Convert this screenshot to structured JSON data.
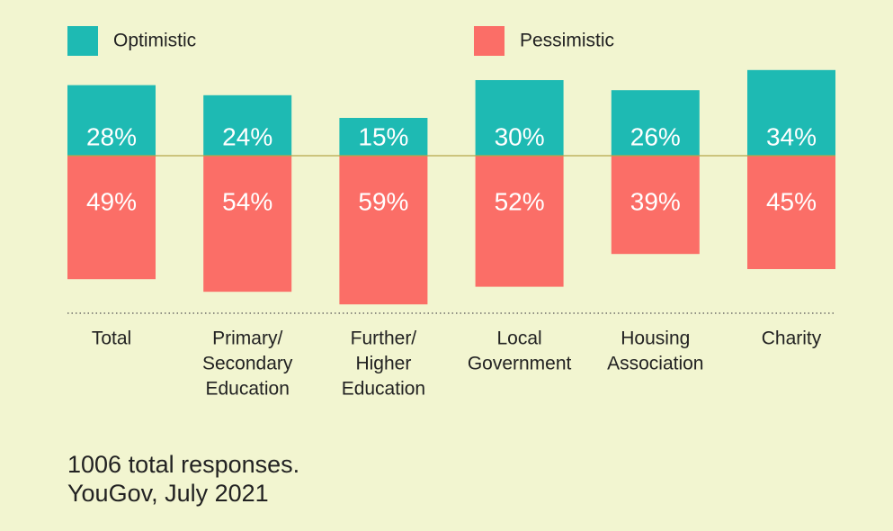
{
  "chart_data": {
    "type": "diverging_bar",
    "categories": [
      [
        "Total"
      ],
      [
        "Primary/",
        "Secondary",
        "Education"
      ],
      [
        "Further/",
        "Higher",
        "Education"
      ],
      [
        "Local",
        "Government"
      ],
      [
        "Housing",
        "Association"
      ],
      [
        "Charity"
      ]
    ],
    "series": [
      {
        "name": "Optimistic",
        "color": "#1ebab3",
        "direction": "up",
        "values": [
          28,
          24,
          15,
          30,
          26,
          34
        ],
        "value_labels": [
          "28%",
          "24%",
          "15%",
          "30%",
          "26%",
          "34%"
        ]
      },
      {
        "name": "Pessimistic",
        "color": "#fb6e67",
        "direction": "down",
        "values": [
          49,
          54,
          59,
          52,
          39,
          45
        ],
        "value_labels": [
          "49%",
          "54%",
          "59%",
          "52%",
          "39%",
          "45%"
        ]
      }
    ],
    "notes": [
      "1006 total responses.",
      "YouGov, July 2021"
    ]
  }
}
